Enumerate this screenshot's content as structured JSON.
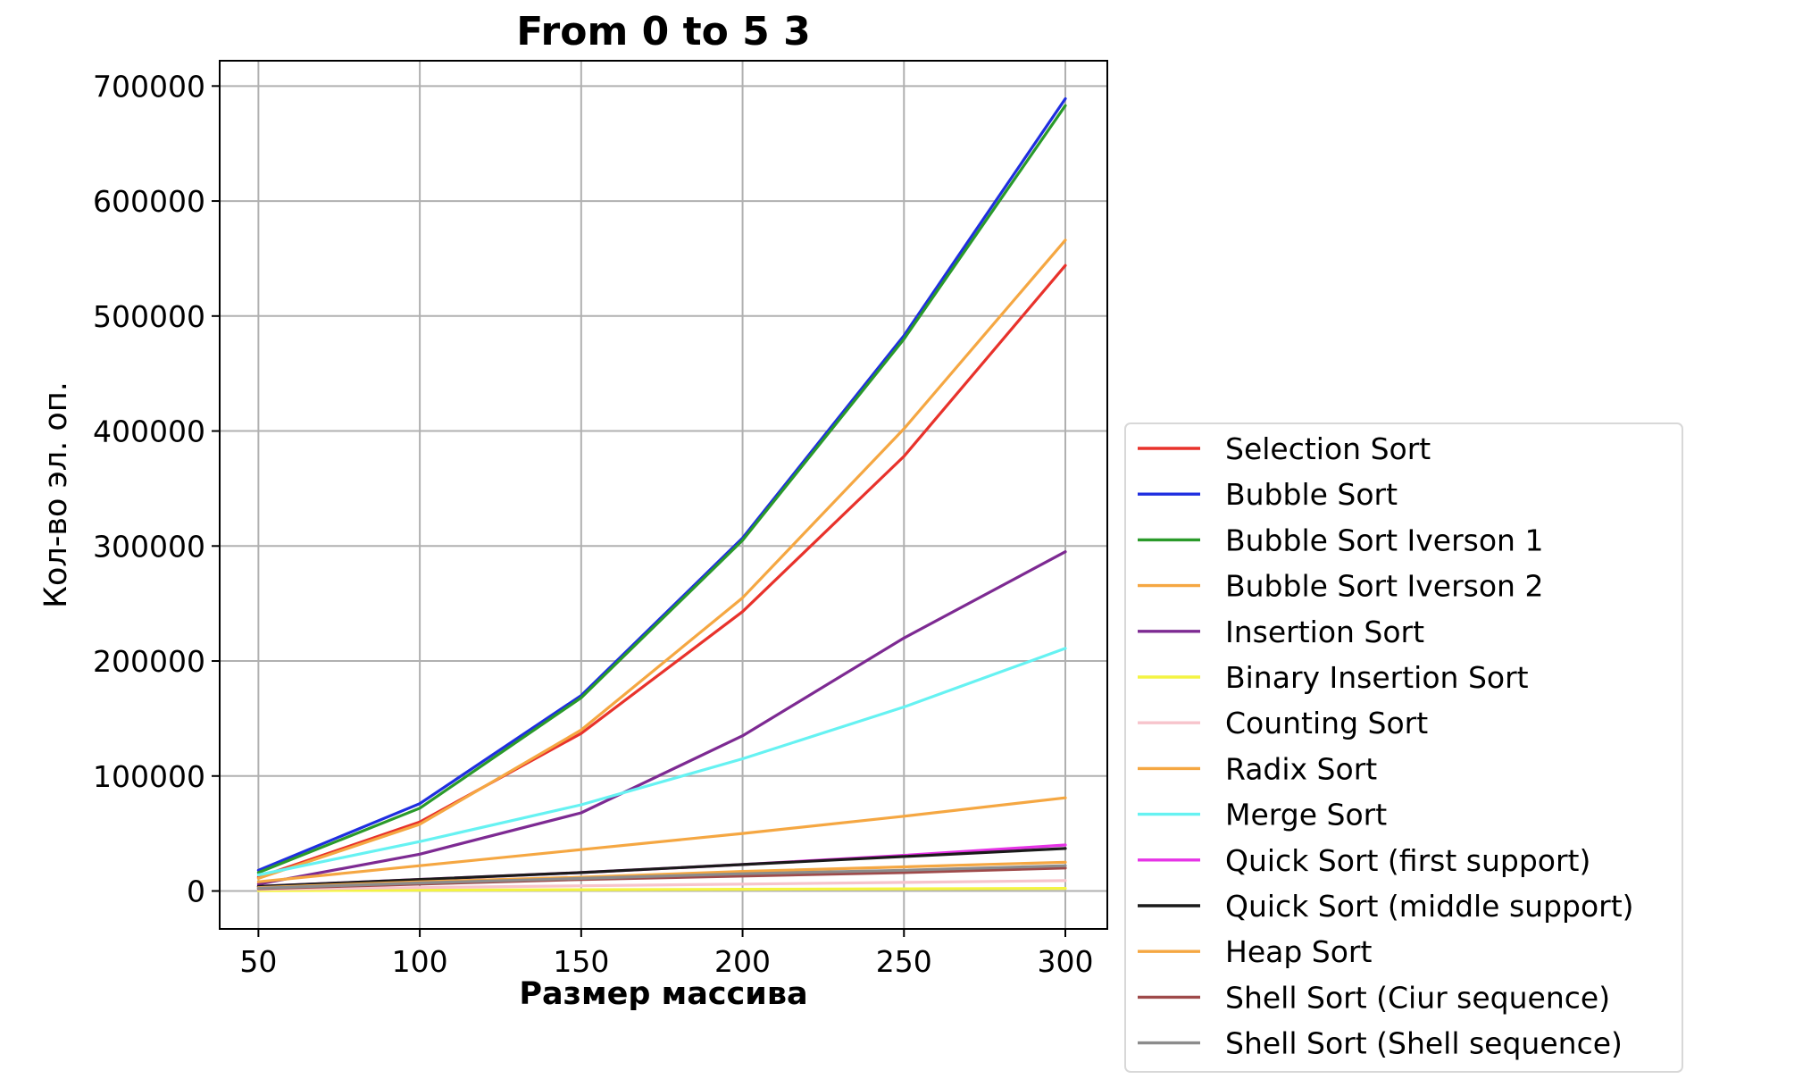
{
  "chart_data": {
    "type": "line",
    "title": "From 0 to 5 3",
    "xlabel": "Размер массива",
    "ylabel": "Кол-во эл. оп.",
    "x": [
      50,
      100,
      150,
      200,
      250,
      300
    ],
    "xlim": [
      38,
      313
    ],
    "ylim": [
      -33000,
      722000
    ],
    "xticks": [
      50,
      100,
      150,
      200,
      250,
      300
    ],
    "yticks": [
      0,
      100000,
      200000,
      300000,
      400000,
      500000,
      600000,
      700000
    ],
    "grid": true,
    "legend_position": "right, lower",
    "series": [
      {
        "name": "Selection Sort",
        "color": "#e8322b",
        "values": [
          12000,
          60000,
          137000,
          243000,
          378000,
          544000
        ]
      },
      {
        "name": "Bubble Sort",
        "color": "#1f2ee0",
        "values": [
          18000,
          76000,
          170000,
          307000,
          483000,
          689000
        ]
      },
      {
        "name": "Bubble Sort Iverson 1",
        "color": "#2a9a2a",
        "values": [
          16000,
          72000,
          168000,
          305000,
          480000,
          683000
        ]
      },
      {
        "name": "Bubble Sort Iverson 2",
        "color": "#f5a742",
        "values": [
          11000,
          58000,
          140000,
          255000,
          402000,
          566000
        ]
      },
      {
        "name": "Insertion Sort",
        "color": "#7d2a92",
        "values": [
          6000,
          32000,
          68000,
          135000,
          220000,
          295000
        ]
      },
      {
        "name": "Binary Insertion Sort",
        "color": "#f4f442",
        "values": [
          300,
          700,
          1100,
          1500,
          1900,
          2300
        ]
      },
      {
        "name": "Counting Sort",
        "color": "#f7c4cc",
        "values": [
          1500,
          3000,
          4500,
          6000,
          7500,
          9000
        ]
      },
      {
        "name": "Radix Sort",
        "color": "#f5a742",
        "values": [
          8000,
          22000,
          36000,
          50000,
          65000,
          81000
        ]
      },
      {
        "name": "Merge Sort",
        "color": "#66f2f2",
        "values": [
          14000,
          43000,
          75000,
          115000,
          160000,
          211000
        ]
      },
      {
        "name": "Quick Sort (first support)",
        "color": "#e633e6",
        "values": [
          4000,
          10000,
          16000,
          23000,
          31000,
          40000
        ]
      },
      {
        "name": "Quick Sort (middle support)",
        "color": "#1a1a1a",
        "values": [
          4000,
          10000,
          16000,
          23000,
          30000,
          37000
        ]
      },
      {
        "name": "Heap Sort",
        "color": "#f5a742",
        "values": [
          3000,
          8000,
          12000,
          17000,
          21000,
          25000
        ]
      },
      {
        "name": "Shell Sort (Ciur sequence)",
        "color": "#9e4a4a",
        "values": [
          2000,
          6000,
          10000,
          13000,
          16000,
          20000
        ]
      },
      {
        "name": "Shell Sort (Shell sequence)",
        "color": "#8c8c8c",
        "values": [
          2500,
          7000,
          11000,
          15000,
          18000,
          22000
        ]
      }
    ]
  }
}
